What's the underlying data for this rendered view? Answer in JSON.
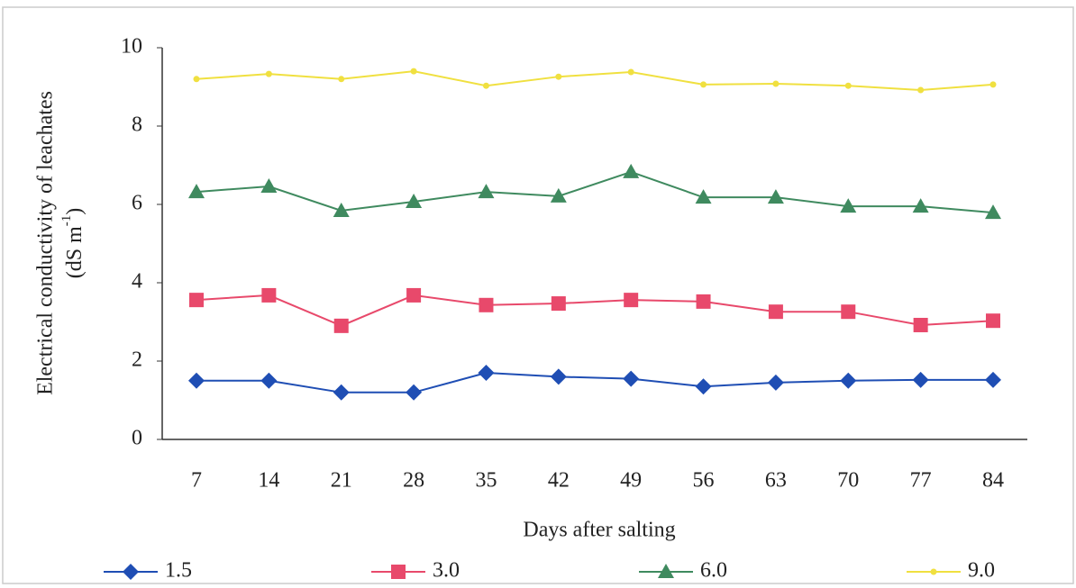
{
  "chart_data": {
    "type": "line",
    "xlabel": "Days after salting",
    "ylabel": "Electrical conductivity of leachates",
    "ylabel_unit": "(dS m",
    "ylabel_unit_sup": "-1",
    "ylabel_unit_end": ")",
    "categories": [
      "7",
      "14",
      "21",
      "28",
      "35",
      "42",
      "49",
      "56",
      "63",
      "70",
      "77",
      "84"
    ],
    "series": [
      {
        "name": "1.5",
        "color": "#1f4eb4",
        "marker": "diamond",
        "values": [
          1.5,
          1.5,
          1.2,
          1.2,
          1.7,
          1.6,
          1.55,
          1.35,
          1.45,
          1.5,
          1.52,
          1.52
        ]
      },
      {
        "name": "3.0",
        "color": "#e8496b",
        "marker": "square",
        "values": [
          3.56,
          3.68,
          2.9,
          3.68,
          3.43,
          3.47,
          3.56,
          3.52,
          3.26,
          3.26,
          2.92,
          3.03
        ]
      },
      {
        "name": "6.0",
        "color": "#3f8a5f",
        "marker": "triangle",
        "values": [
          6.32,
          6.46,
          5.84,
          6.07,
          6.32,
          6.21,
          6.83,
          6.18,
          6.18,
          5.95,
          5.95,
          5.79
        ]
      },
      {
        "name": "9.0",
        "color": "#f0e040",
        "marker": "circle",
        "values": [
          9.2,
          9.33,
          9.2,
          9.4,
          9.03,
          9.26,
          9.38,
          9.06,
          9.08,
          9.03,
          8.92,
          9.06
        ]
      }
    ],
    "ylim": [
      0,
      10
    ],
    "yticks": [
      0,
      2,
      4,
      6,
      8,
      10
    ],
    "grid": false,
    "legend": "bottom"
  }
}
